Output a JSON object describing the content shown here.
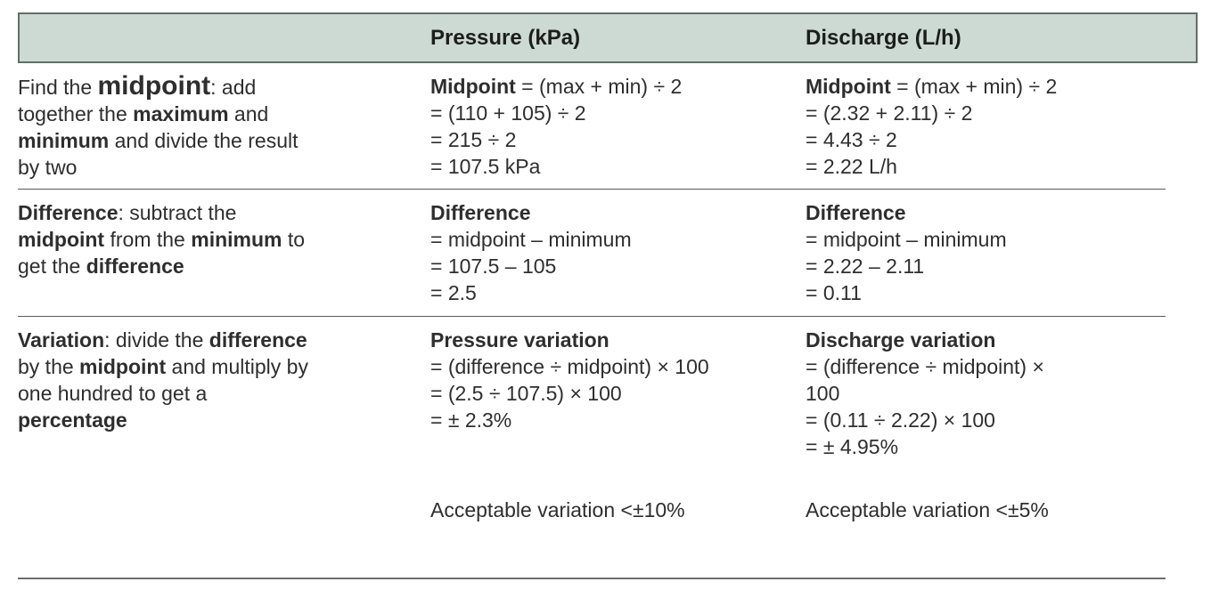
{
  "table": {
    "header": {
      "pressure": "Pressure (kPa)",
      "discharge": "Discharge (L/h)"
    },
    "rows": [
      {
        "instruction": [
          [
            "Find the ",
            "midpoint",
            ": add"
          ],
          [
            "together the ",
            "maximum",
            " and"
          ],
          [
            "minimum",
            " and divide the result"
          ],
          [
            "by two"
          ]
        ],
        "pressure": {
          "bold": "Midpoint",
          "rest": " = (max + min) ÷ 2",
          "lines": [
            "= (110 + 105) ÷ 2",
            "= 215 ÷ 2",
            "= 107.5 kPa"
          ]
        },
        "discharge": {
          "bold": "Midpoint",
          "rest": " = (max + min) ÷ 2",
          "lines": [
            "= (2.32 + 2.11) ÷ 2",
            "= 4.43 ÷ 2",
            "= 2.22 L/h"
          ]
        }
      },
      {
        "instruction": [
          [
            "Difference",
            ": subtract the"
          ],
          [
            "midpoint",
            " from the ",
            "minimum",
            " to"
          ],
          [
            "get the ",
            "difference"
          ]
        ],
        "pressure": {
          "bold": "Difference",
          "lines": [
            "= midpoint – minimum",
            "= 107.5 – 105",
            "= 2.5"
          ]
        },
        "discharge": {
          "bold": "Difference",
          "lines": [
            "= midpoint – minimum",
            "= 2.22 – 2.11",
            "= 0.11"
          ]
        }
      },
      {
        "instruction": [
          [
            "Variation",
            ": divide the ",
            "difference"
          ],
          [
            "by the ",
            "midpoint",
            " and multiply by"
          ],
          [
            "one hundred to get a"
          ],
          [
            "percentage"
          ]
        ],
        "pressure": {
          "bold": "Pressure variation",
          "lines": [
            "= (difference ÷ midpoint) × 100",
            "= (2.5 ÷ 107.5) × 100",
            "= ± 2.3%"
          ],
          "note": "Acceptable variation <±10%"
        },
        "discharge": {
          "bold": "Discharge variation",
          "lines": [
            "= (difference ÷ midpoint) ×",
            "100",
            "= (0.11 ÷ 2.22) × 100",
            "= ± 4.95%"
          ],
          "note": "Acceptable variation <±5%"
        }
      }
    ]
  }
}
